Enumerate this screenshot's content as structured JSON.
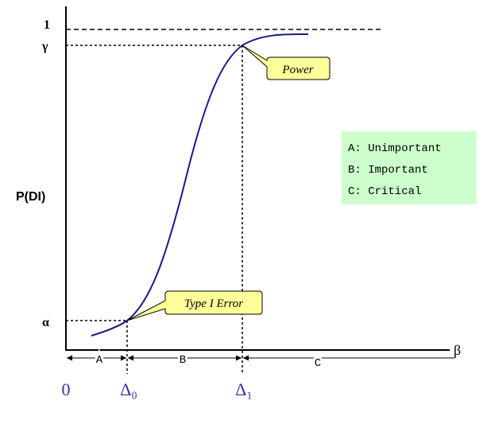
{
  "y_axis": {
    "label": "P(DI)",
    "ticks": [
      "1",
      "γ",
      "α"
    ]
  },
  "x_axis": {
    "label": "β",
    "ticks": [
      "0",
      "Δ₀",
      "Δ₁"
    ]
  },
  "regions": [
    "A",
    "B",
    "C"
  ],
  "callouts": [
    "Power",
    "Type I Error"
  ],
  "legend": [
    "A: Unimportant",
    "B: Important",
    "C: Critical"
  ]
}
